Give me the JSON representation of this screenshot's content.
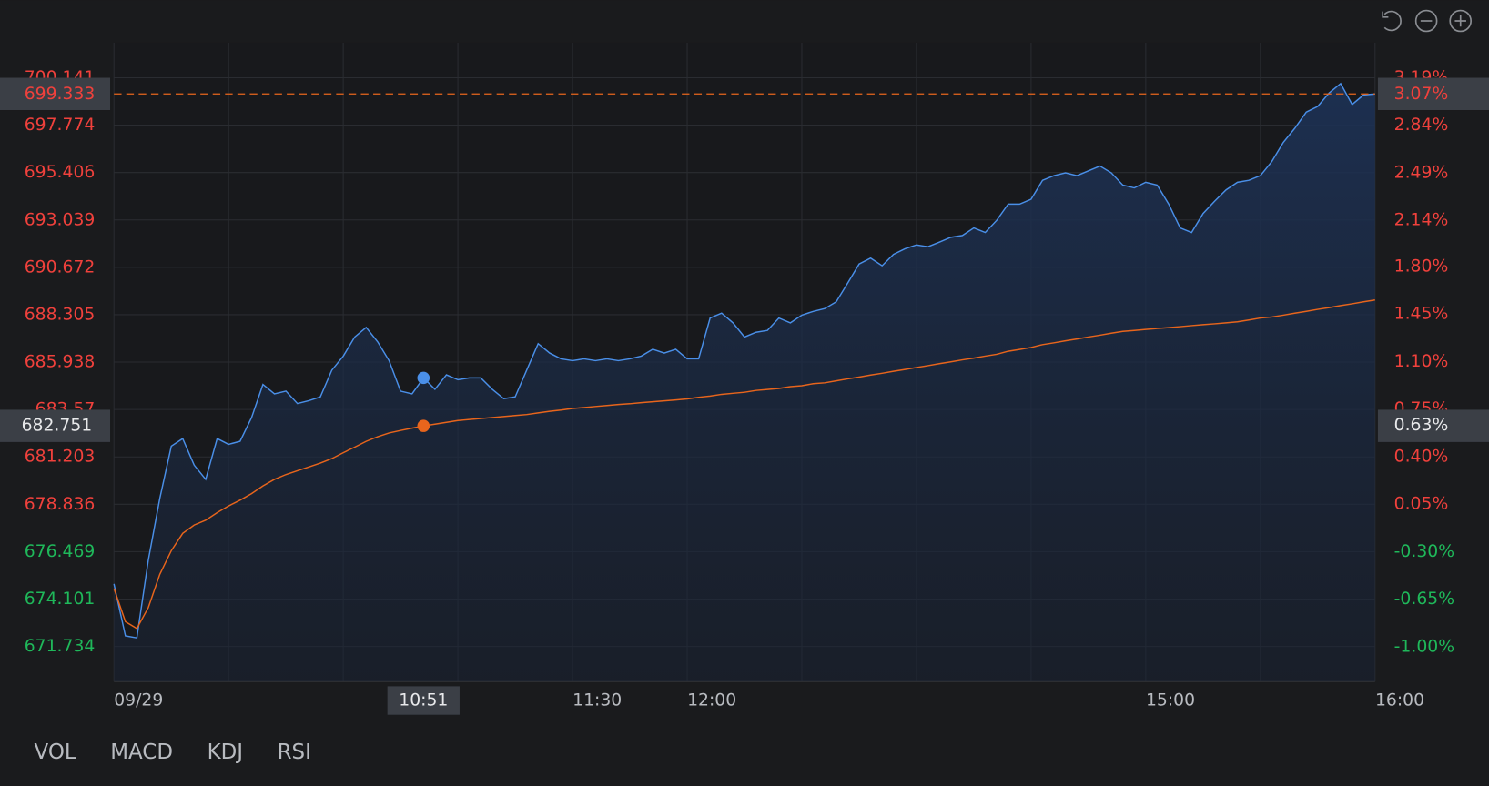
{
  "chart_data": {
    "type": "line",
    "x": [
      0,
      1,
      2,
      3,
      4,
      5,
      6,
      7,
      8,
      9,
      10,
      11,
      12,
      13,
      14,
      15,
      16,
      17,
      18,
      19,
      20,
      21,
      22,
      23,
      24,
      25,
      26,
      27,
      28,
      29,
      30,
      31,
      32,
      33,
      34,
      35,
      36,
      37,
      38,
      39,
      40,
      41,
      42,
      43,
      44,
      45,
      46,
      47,
      48,
      49,
      50,
      51,
      52,
      53,
      54,
      55,
      56,
      57,
      58,
      59,
      60,
      61,
      62,
      63,
      64,
      65,
      66,
      67,
      68,
      69,
      70,
      71,
      72,
      73,
      74,
      75,
      76,
      77,
      78,
      79,
      80,
      81,
      82,
      83,
      84,
      85,
      86,
      87,
      88,
      89,
      90,
      91,
      92,
      93,
      94,
      95,
      96,
      97,
      98,
      99,
      100,
      101,
      102,
      103,
      104,
      105,
      106,
      107,
      108,
      109,
      110
    ],
    "series": [
      {
        "color": "#4a8fe8",
        "values": [
          674.86,
          672.26,
          672.16,
          676.05,
          679.13,
          681.74,
          682.12,
          680.79,
          680.08,
          682.12,
          681.83,
          681.98,
          683.16,
          684.82,
          684.35,
          684.49,
          683.87,
          684.01,
          684.2,
          685.53,
          686.24,
          687.19,
          687.67,
          686.95,
          686.01,
          684.49,
          684.35,
          685.15,
          684.58,
          685.3,
          685.06,
          685.15,
          685.15,
          684.58,
          684.11,
          684.2,
          685.53,
          686.86,
          686.39,
          686.1,
          686.01,
          686.1,
          686.01,
          686.1,
          686.01,
          686.1,
          686.24,
          686.58,
          686.39,
          686.58,
          686.1,
          686.1,
          688.14,
          688.38,
          687.9,
          687.19,
          687.43,
          687.52,
          688.14,
          687.9,
          688.28,
          688.47,
          688.61,
          688.95,
          689.89,
          690.84,
          691.13,
          690.75,
          691.32,
          691.6,
          691.79,
          691.7,
          691.93,
          692.17,
          692.26,
          692.64,
          692.41,
          693.02,
          693.83,
          693.83,
          694.07,
          695.02,
          695.25,
          695.39,
          695.25,
          695.49,
          695.73,
          695.39,
          694.78,
          694.64,
          694.92,
          694.78,
          693.83,
          692.64,
          692.41,
          693.36,
          693.97,
          694.54,
          694.92,
          695.02,
          695.25,
          695.96,
          696.91,
          697.62,
          698.43,
          698.71,
          699.38,
          699.85,
          698.81,
          699.28,
          699.333
        ]
      },
      {
        "color": "#e8651c",
        "values": [
          674.63,
          672.97,
          672.63,
          673.68,
          675.34,
          676.52,
          677.38,
          677.8,
          678.04,
          678.42,
          678.75,
          679.04,
          679.37,
          679.75,
          680.08,
          680.32,
          680.51,
          680.7,
          680.89,
          681.12,
          681.41,
          681.69,
          681.98,
          682.21,
          682.4,
          682.52,
          682.64,
          682.751,
          682.84,
          682.93,
          683.02,
          683.07,
          683.12,
          683.17,
          683.22,
          683.27,
          683.32,
          683.4,
          683.48,
          683.54,
          683.62,
          683.67,
          683.72,
          683.77,
          683.82,
          683.86,
          683.91,
          683.96,
          684.0,
          684.05,
          684.1,
          684.18,
          684.24,
          684.33,
          684.38,
          684.43,
          684.52,
          684.57,
          684.62,
          684.71,
          684.76,
          684.86,
          684.9,
          685.0,
          685.1,
          685.19,
          685.29,
          685.38,
          685.48,
          685.57,
          685.67,
          685.76,
          685.86,
          685.95,
          686.05,
          686.14,
          686.24,
          686.33,
          686.48,
          686.57,
          686.67,
          686.81,
          686.9,
          687.0,
          687.09,
          687.19,
          687.28,
          687.38,
          687.47,
          687.52,
          687.57,
          687.62,
          687.66,
          687.71,
          687.76,
          687.81,
          687.85,
          687.9,
          687.95,
          688.04,
          688.14,
          688.19,
          688.28,
          688.38,
          688.47,
          688.57,
          688.66,
          688.76,
          688.85,
          688.95,
          689.04
        ]
      }
    ],
    "xlim": [
      0,
      110
    ],
    "xticks": [
      {
        "value": 0,
        "label": "09/29"
      },
      {
        "value": 40,
        "label": "11:30"
      },
      {
        "value": 50,
        "label": "12:00"
      },
      {
        "value": 90,
        "label": "15:00"
      },
      {
        "value": 110,
        "label": "16:00"
      }
    ],
    "xgrid": [
      0,
      10,
      20,
      30,
      40,
      50,
      60,
      70,
      80,
      90,
      100,
      110
    ],
    "ylim": [
      669.98,
      701.89
    ],
    "yticks": [
      700.141,
      697.774,
      695.406,
      693.039,
      690.672,
      688.305,
      685.938,
      683.57,
      681.203,
      678.836,
      676.469,
      674.101,
      671.734
    ],
    "y2lim": [
      -1.256,
      3.447
    ],
    "y2ticks": [
      {
        "value": 3.19,
        "label": "3.19%"
      },
      {
        "value": 2.84,
        "label": "2.84%"
      },
      {
        "value": 2.49,
        "label": "2.49%"
      },
      {
        "value": 2.14,
        "label": "2.14%"
      },
      {
        "value": 1.8,
        "label": "1.80%"
      },
      {
        "value": 1.45,
        "label": "1.45%"
      },
      {
        "value": 1.1,
        "label": "1.10%"
      },
      {
        "value": 0.75,
        "label": "0.75%"
      },
      {
        "value": 0.4,
        "label": "0.40%"
      },
      {
        "value": 0.05,
        "label": "0.05%"
      },
      {
        "value": -0.3,
        "label": "-0.30%"
      },
      {
        "value": -0.65,
        "label": "-0.65%"
      },
      {
        "value": -1.0,
        "label": "-1.00%"
      }
    ],
    "up_color": "#f0413c",
    "down_color": "#1fb85a",
    "grid": true,
    "current_price": 699.333,
    "current_change": {
      "value": 3.07,
      "label": "3.07%"
    },
    "crosshair": {
      "x": {
        "value": 27,
        "label": "10:51"
      },
      "price": 682.751,
      "change": {
        "value": 0.63,
        "label": "0.63%"
      }
    },
    "tabs": [
      "VOL",
      "MACD",
      "KDJ",
      "RSI"
    ]
  }
}
